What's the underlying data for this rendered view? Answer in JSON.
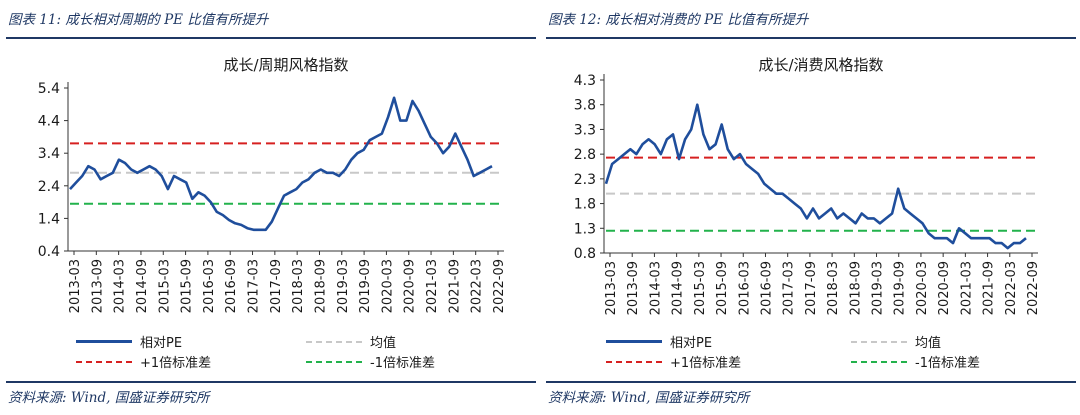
{
  "panels": [
    {
      "caption": "图表 11:  成长相对周期的 PE 比值有所提升",
      "source": "资料来源:  Wind,  国盛证券研究所",
      "chart_data": {
        "type": "line",
        "title": "成长/周期风格指数",
        "yticks": [
          "5.4",
          "4.4",
          "3.4",
          "2.4",
          "1.4",
          "0.4"
        ],
        "ylim": [
          0.4,
          5.4
        ],
        "xticks": [
          "2013-03",
          "2013-09",
          "2014-03",
          "2014-09",
          "2015-03",
          "2015-09",
          "2016-03",
          "2016-09",
          "2017-03",
          "2017-09",
          "2018-03",
          "2018-09",
          "2019-03",
          "2019-09",
          "2020-03",
          "2020-09",
          "2021-03",
          "2021-09",
          "2022-03",
          "2022-09"
        ],
        "series": [
          {
            "name": "相对PE",
            "color": "#1f4e9c",
            "style": "solid",
            "values": [
              2.3,
              2.5,
              2.7,
              3.0,
              2.9,
              2.6,
              2.7,
              2.8,
              3.2,
              3.1,
              2.9,
              2.8,
              2.9,
              3.0,
              2.9,
              2.7,
              2.3,
              2.7,
              2.6,
              2.5,
              2.0,
              2.2,
              2.1,
              1.9,
              1.6,
              1.5,
              1.35,
              1.25,
              1.2,
              1.1,
              1.05,
              1.05,
              1.05,
              1.3,
              1.7,
              2.1,
              2.2,
              2.3,
              2.5,
              2.6,
              2.8,
              2.9,
              2.8,
              2.8,
              2.7,
              2.9,
              3.2,
              3.4,
              3.5,
              3.8,
              3.9,
              4.0,
              4.5,
              5.1,
              4.4,
              4.4,
              5.0,
              4.7,
              4.3,
              3.9,
              3.7,
              3.4,
              3.6,
              4.0,
              3.6,
              3.2,
              2.7,
              2.8,
              2.9,
              3.0
            ]
          },
          {
            "name": "均值",
            "color": "#c8c8c8",
            "style": "dashed",
            "values": [
              2.8
            ]
          },
          {
            "name": "+1倍标准差",
            "color": "#d62020",
            "style": "dashed",
            "values": [
              3.7
            ]
          },
          {
            "name": "-1倍标准差",
            "color": "#22b24c",
            "style": "dashed",
            "values": [
              1.85
            ]
          }
        ]
      }
    },
    {
      "caption": "图表 12:  成长相对消费的 PE 比值有所提升",
      "source": "资料来源:  Wind,  国盛证券研究所",
      "chart_data": {
        "type": "line",
        "title": "成长/消费风格指数",
        "yticks": [
          "4.3",
          "3.8",
          "3.3",
          "2.8",
          "2.3",
          "1.8",
          "1.3",
          "0.8"
        ],
        "ylim": [
          0.8,
          4.3
        ],
        "xticks": [
          "2013-03",
          "2013-09",
          "2014-03",
          "2014-09",
          "2015-03",
          "2015-09",
          "2016-03",
          "2016-09",
          "2017-03",
          "2017-09",
          "2018-03",
          "2018-09",
          "2019-03",
          "2019-09",
          "2020-03",
          "2020-09",
          "2021-03",
          "2021-09",
          "2022-03",
          "2022-09"
        ],
        "series": [
          {
            "name": "相对PE",
            "color": "#1f4e9c",
            "style": "solid",
            "values": [
              2.2,
              2.6,
              2.7,
              2.8,
              2.9,
              2.8,
              3.0,
              3.1,
              3.0,
              2.8,
              3.1,
              3.2,
              2.7,
              3.1,
              3.3,
              3.8,
              3.2,
              2.9,
              3.0,
              3.4,
              2.9,
              2.7,
              2.8,
              2.6,
              2.5,
              2.4,
              2.2,
              2.1,
              2.0,
              2.0,
              1.9,
              1.8,
              1.7,
              1.5,
              1.7,
              1.5,
              1.6,
              1.7,
              1.5,
              1.6,
              1.5,
              1.4,
              1.6,
              1.5,
              1.5,
              1.4,
              1.5,
              1.6,
              2.1,
              1.7,
              1.6,
              1.5,
              1.4,
              1.2,
              1.1,
              1.1,
              1.1,
              1.0,
              1.3,
              1.2,
              1.1,
              1.1,
              1.1,
              1.1,
              1.0,
              1.0,
              0.9,
              1.0,
              1.0,
              1.1
            ]
          },
          {
            "name": "均值",
            "color": "#c8c8c8",
            "style": "dashed",
            "values": [
              2.0
            ]
          },
          {
            "name": "+1倍标准差",
            "color": "#d62020",
            "style": "dashed",
            "values": [
              2.73
            ]
          },
          {
            "name": "-1倍标准差",
            "color": "#22b24c",
            "style": "dashed",
            "values": [
              1.25
            ]
          }
        ]
      }
    }
  ]
}
